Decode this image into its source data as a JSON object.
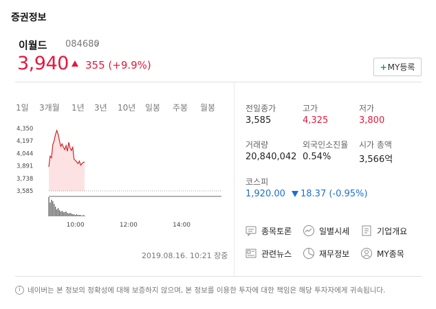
{
  "header": {
    "section_title": "증권정보"
  },
  "stock": {
    "name": "이월드",
    "code": "084680",
    "price": "3,940",
    "change": "355 (+9.9%)",
    "my_button_plus": "+",
    "my_button_label": "MY등록",
    "up_color": "#e5173b"
  },
  "tabs": [
    {
      "label": "1일",
      "active": true
    },
    {
      "label": "3개월",
      "active": false
    },
    {
      "label": "1년",
      "active": false
    },
    {
      "label": "3년",
      "active": false
    },
    {
      "label": "10년",
      "active": false
    },
    {
      "label": "일봉",
      "active": false
    },
    {
      "label": "주봉",
      "active": false
    },
    {
      "label": "월봉",
      "active": false
    }
  ],
  "stats": {
    "prev_close_label": "전일종가",
    "prev_close": "3,585",
    "high_label": "고가",
    "high": "4,325",
    "low_label": "저가",
    "low": "3,800",
    "volume_label": "거래량",
    "volume": "20,840,042",
    "foreign_label": "외국인소진율",
    "foreign": "0.54%",
    "mcap_label": "시가 총액",
    "mcap": "3,566억",
    "index_label": "코스피",
    "index_value": "1,920.00",
    "index_change": "18.37 (-0.95%)",
    "down_color": "#1a6fd1"
  },
  "links": {
    "discussion": "종목토론",
    "daily": "일별시세",
    "company": "기업개요",
    "news": "관련뉴스",
    "finance": "재무정보",
    "my_stock": "MY종목"
  },
  "timestamp": "2019.08.16.  10:21 장중",
  "notice": "네이버는 본 정보의 정확성에 대해 보증하지 않으며, 본 정보를 이용한 투자에 대한 책임은 해당 투자자에게 귀속됩니다.",
  "notice_icon": "i",
  "chart_data": {
    "type": "line",
    "title": "",
    "xlabel": "",
    "ylabel": "",
    "x_ticks": [
      "10:00",
      "12:00",
      "14:00"
    ],
    "y_ticks": [
      "4,350",
      "4,197",
      "4,044",
      "3,891",
      "3,738",
      "3,585"
    ],
    "ylim": [
      3585,
      4350
    ],
    "baseline": 3585,
    "series": [
      {
        "x": [
          "09:00",
          "09:03",
          "09:06",
          "09:09",
          "09:12",
          "09:15",
          "09:18",
          "09:21",
          "09:24",
          "09:27",
          "09:30",
          "09:33",
          "09:36",
          "09:39",
          "09:42",
          "09:45",
          "09:48",
          "09:51",
          "09:54",
          "09:57",
          "10:00",
          "10:03",
          "10:06",
          "10:09",
          "10:12",
          "10:15",
          "10:18",
          "10:21"
        ],
        "values": [
          3880,
          4010,
          3990,
          4150,
          4200,
          4275,
          4325,
          4280,
          4200,
          4130,
          4160,
          4120,
          4090,
          4140,
          4070,
          4180,
          4110,
          4080,
          4120,
          3970,
          3960,
          3940,
          3920,
          3950,
          3900,
          3920,
          3935,
          3940
        ]
      }
    ],
    "volume": [
      28,
      20,
      24,
      22,
      18,
      14,
      10,
      12,
      9,
      7,
      8,
      6,
      6,
      7,
      5,
      4,
      5,
      4,
      3,
      3,
      2,
      3,
      2,
      2,
      2,
      1,
      2,
      1
    ],
    "line_color": "#c62828",
    "fill_color": "#fde2e4"
  }
}
